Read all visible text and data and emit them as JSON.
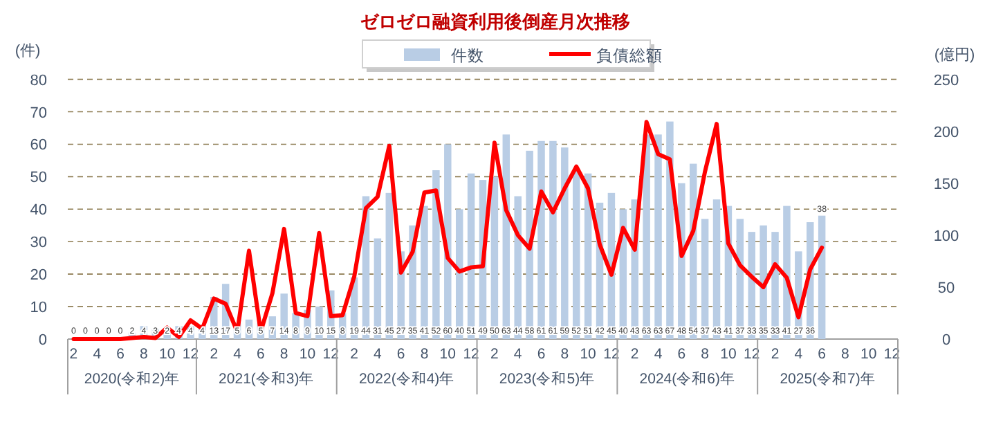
{
  "chart_data": {
    "type": "bar",
    "title": "ゼロゼロ融資利用後倒産月次推移",
    "categories": [
      "2",
      null,
      "4",
      null,
      "6",
      null,
      "8",
      null,
      "10",
      null,
      "12",
      null,
      "2",
      null,
      "4",
      null,
      "6",
      null,
      "8",
      null,
      "10",
      null,
      "12",
      null,
      "2",
      null,
      "4",
      null,
      "6",
      null,
      "8",
      null,
      "10",
      null,
      "12",
      null,
      "2",
      null,
      "4",
      null,
      "6",
      null,
      "8",
      null,
      "10",
      null,
      "12",
      null,
      "2",
      null,
      "4",
      null,
      "6",
      null,
      "8",
      null,
      "10",
      null,
      "12",
      null,
      "2",
      null,
      "4",
      null,
      "6",
      null,
      "8",
      null,
      "10",
      null,
      "12"
    ],
    "series": [
      {
        "name": "件数",
        "color": "#b9cde5",
        "values": [
          0,
          0,
          0,
          0,
          0,
          2,
          4,
          3,
          2,
          4,
          4,
          4,
          13,
          17,
          5,
          6,
          5,
          7,
          14,
          8,
          9,
          10,
          15,
          8,
          19,
          44,
          31,
          45,
          27,
          35,
          41,
          52,
          60,
          40,
          51,
          49,
          50,
          63,
          44,
          58,
          61,
          61,
          59,
          52,
          51,
          42,
          45,
          40,
          43,
          63,
          63,
          67,
          48,
          54,
          37,
          43,
          41,
          37,
          33,
          35,
          33,
          41,
          27,
          36,
          38,
          null,
          null,
          null,
          null,
          null,
          null
        ],
        "value_labels": [
          "0",
          "0",
          "0",
          "0",
          "0",
          "2",
          "4",
          "3",
          "2",
          "4",
          "4",
          "4",
          "13",
          "17",
          "5",
          "6",
          "5",
          "7",
          "14",
          "8",
          "9",
          "10",
          "15",
          "8",
          "19",
          "44",
          "31",
          "45",
          "27",
          "35",
          "41",
          "52",
          "60",
          "40",
          "51",
          "49",
          "50",
          "63",
          "44",
          "58",
          "61",
          "61",
          "59",
          "52",
          "51",
          "42",
          "45",
          "40",
          "43",
          "63",
          "63",
          "67",
          "48",
          "54",
          "37",
          "43",
          "41",
          "37",
          "33",
          "35",
          "33",
          "41",
          "27",
          "36",
          "38",
          null,
          null,
          null,
          null,
          null,
          null
        ]
      },
      {
        "name": "負債総額",
        "type": "line",
        "axis": "y2",
        "color": "#ff0000",
        "values": [
          0,
          0,
          0,
          0,
          0,
          1,
          2,
          1,
          11,
          2,
          18,
          10,
          39,
          34,
          7,
          85,
          7,
          44,
          106,
          25,
          22,
          102,
          22,
          23,
          60,
          126,
          137,
          186,
          64,
          84,
          141,
          143,
          78,
          65,
          69,
          70,
          189,
          124,
          100,
          87,
          142,
          122,
          145,
          166,
          145,
          91,
          62,
          107,
          86,
          209,
          178,
          173,
          80,
          104,
          161,
          207,
          92,
          71,
          60,
          50,
          72,
          59,
          21,
          67,
          88,
          null,
          null,
          null,
          null,
          null,
          null
        ]
      }
    ],
    "ylabel": "(件)",
    "y2label": "(億円)",
    "ylim": [
      0,
      80
    ],
    "yticks": [
      0,
      10,
      20,
      30,
      40,
      50,
      60,
      70,
      80
    ],
    "y2lim": [
      0,
      250
    ],
    "y2ticks": [
      0,
      50,
      100,
      150,
      200,
      250
    ],
    "grid": "y",
    "legend": "top",
    "annotations": [
      "2020(令和2)年",
      "2021(令和3)年",
      "2022(令和4)年",
      "2023(令和5)年",
      "2024(令和6)年",
      "2025(令和7)年"
    ]
  }
}
